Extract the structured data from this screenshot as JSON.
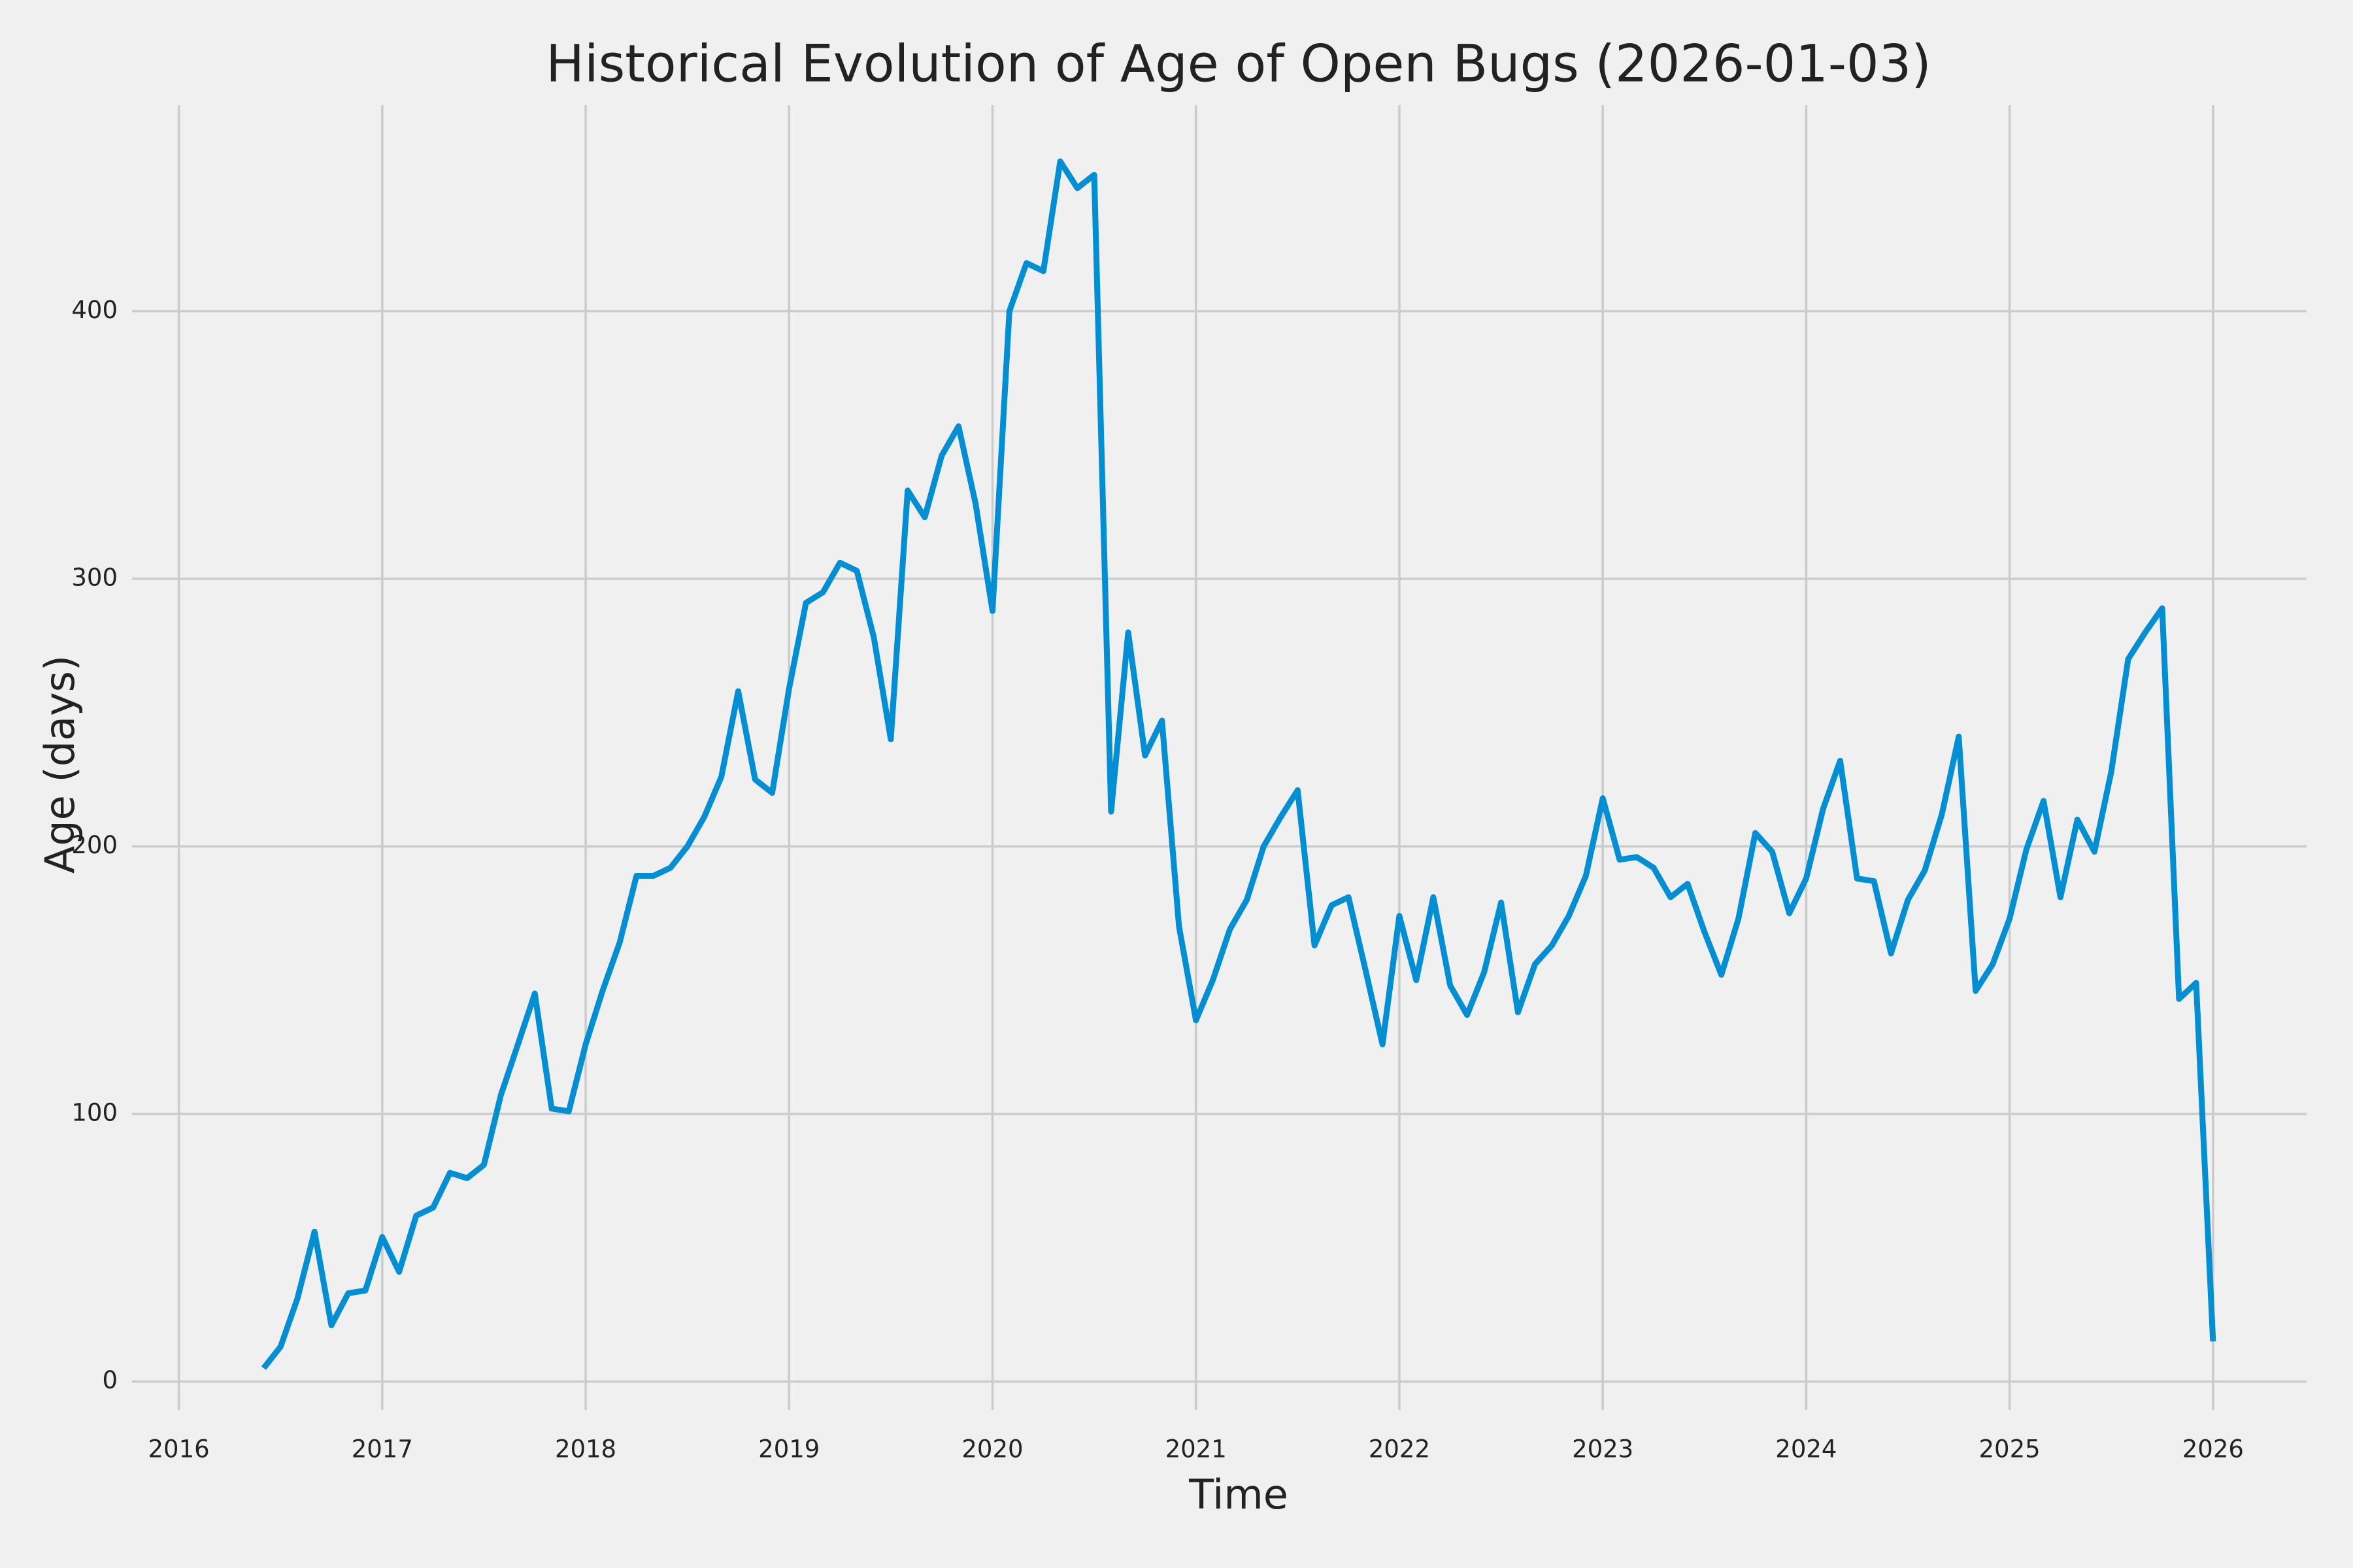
{
  "chart_data": {
    "type": "line",
    "title": "Historical Evolution of Age of Open Bugs (2026-01-03)",
    "xlabel": "Time",
    "ylabel": "Age (days)",
    "x": [
      2016.417,
      2016.5,
      2016.583,
      2016.667,
      2016.75,
      2016.833,
      2016.917,
      2017.0,
      2017.083,
      2017.167,
      2017.25,
      2017.333,
      2017.417,
      2017.5,
      2017.583,
      2017.667,
      2017.75,
      2017.833,
      2017.917,
      2018.0,
      2018.083,
      2018.167,
      2018.25,
      2018.333,
      2018.417,
      2018.5,
      2018.583,
      2018.667,
      2018.75,
      2018.833,
      2018.917,
      2019.0,
      2019.083,
      2019.167,
      2019.25,
      2019.333,
      2019.417,
      2019.5,
      2019.583,
      2019.667,
      2019.75,
      2019.833,
      2019.917,
      2020.0,
      2020.083,
      2020.167,
      2020.25,
      2020.333,
      2020.417,
      2020.5,
      2020.583,
      2020.667,
      2020.75,
      2020.833,
      2020.917,
      2021.0,
      2021.083,
      2021.167,
      2021.25,
      2021.333,
      2021.417,
      2021.5,
      2021.583,
      2021.667,
      2021.75,
      2021.833,
      2021.917,
      2022.0,
      2022.083,
      2022.167,
      2022.25,
      2022.333,
      2022.417,
      2022.5,
      2022.583,
      2022.667,
      2022.75,
      2022.833,
      2022.917,
      2023.0,
      2023.083,
      2023.167,
      2023.25,
      2023.333,
      2023.417,
      2023.5,
      2023.583,
      2023.667,
      2023.75,
      2023.833,
      2023.917,
      2024.0,
      2024.083,
      2024.167,
      2024.25,
      2024.333,
      2024.417,
      2024.5,
      2024.583,
      2024.667,
      2024.75,
      2024.833,
      2024.917,
      2025.0,
      2025.083,
      2025.167,
      2025.25,
      2025.333,
      2025.417,
      2025.5,
      2025.583,
      2025.667,
      2025.75,
      2025.833,
      2025.917,
      2026.0
    ],
    "series": [
      {
        "name": "Age",
        "color": "#008fd5",
        "values": [
          5,
          13,
          31,
          56,
          21,
          33,
          34,
          54,
          41,
          62,
          65,
          78,
          76,
          81,
          107,
          126,
          145,
          102,
          101,
          126,
          146,
          164,
          189,
          189,
          192,
          200,
          211,
          226,
          258,
          225,
          220,
          259,
          291,
          295,
          306,
          303,
          278,
          240,
          333,
          323,
          346,
          357,
          328,
          288,
          400,
          418,
          415,
          456,
          446,
          451,
          213,
          280,
          234,
          247,
          170,
          135,
          150,
          169,
          180,
          200,
          211,
          221,
          163,
          178,
          181,
          154,
          126,
          174,
          150,
          181,
          148,
          137,
          153,
          179,
          138,
          156,
          163,
          174,
          189,
          218,
          195,
          196,
          192,
          181,
          186,
          168,
          152,
          173,
          205,
          198,
          175,
          188,
          214,
          232,
          188,
          187,
          160,
          180,
          191,
          212,
          241,
          146,
          156,
          173,
          199,
          217,
          181,
          210,
          198,
          228,
          270,
          280,
          289,
          143,
          149,
          15
        ]
      }
    ],
    "xlim": [
      2015.77,
      2026.46
    ],
    "xticks": [
      2016,
      2017,
      2018,
      2019,
      2020,
      2021,
      2022,
      2023,
      2024,
      2025,
      2026
    ],
    "ylim": [
      -10.6,
      477
    ],
    "yticks": [
      0,
      100,
      200,
      300,
      400
    ],
    "grid": true
  }
}
